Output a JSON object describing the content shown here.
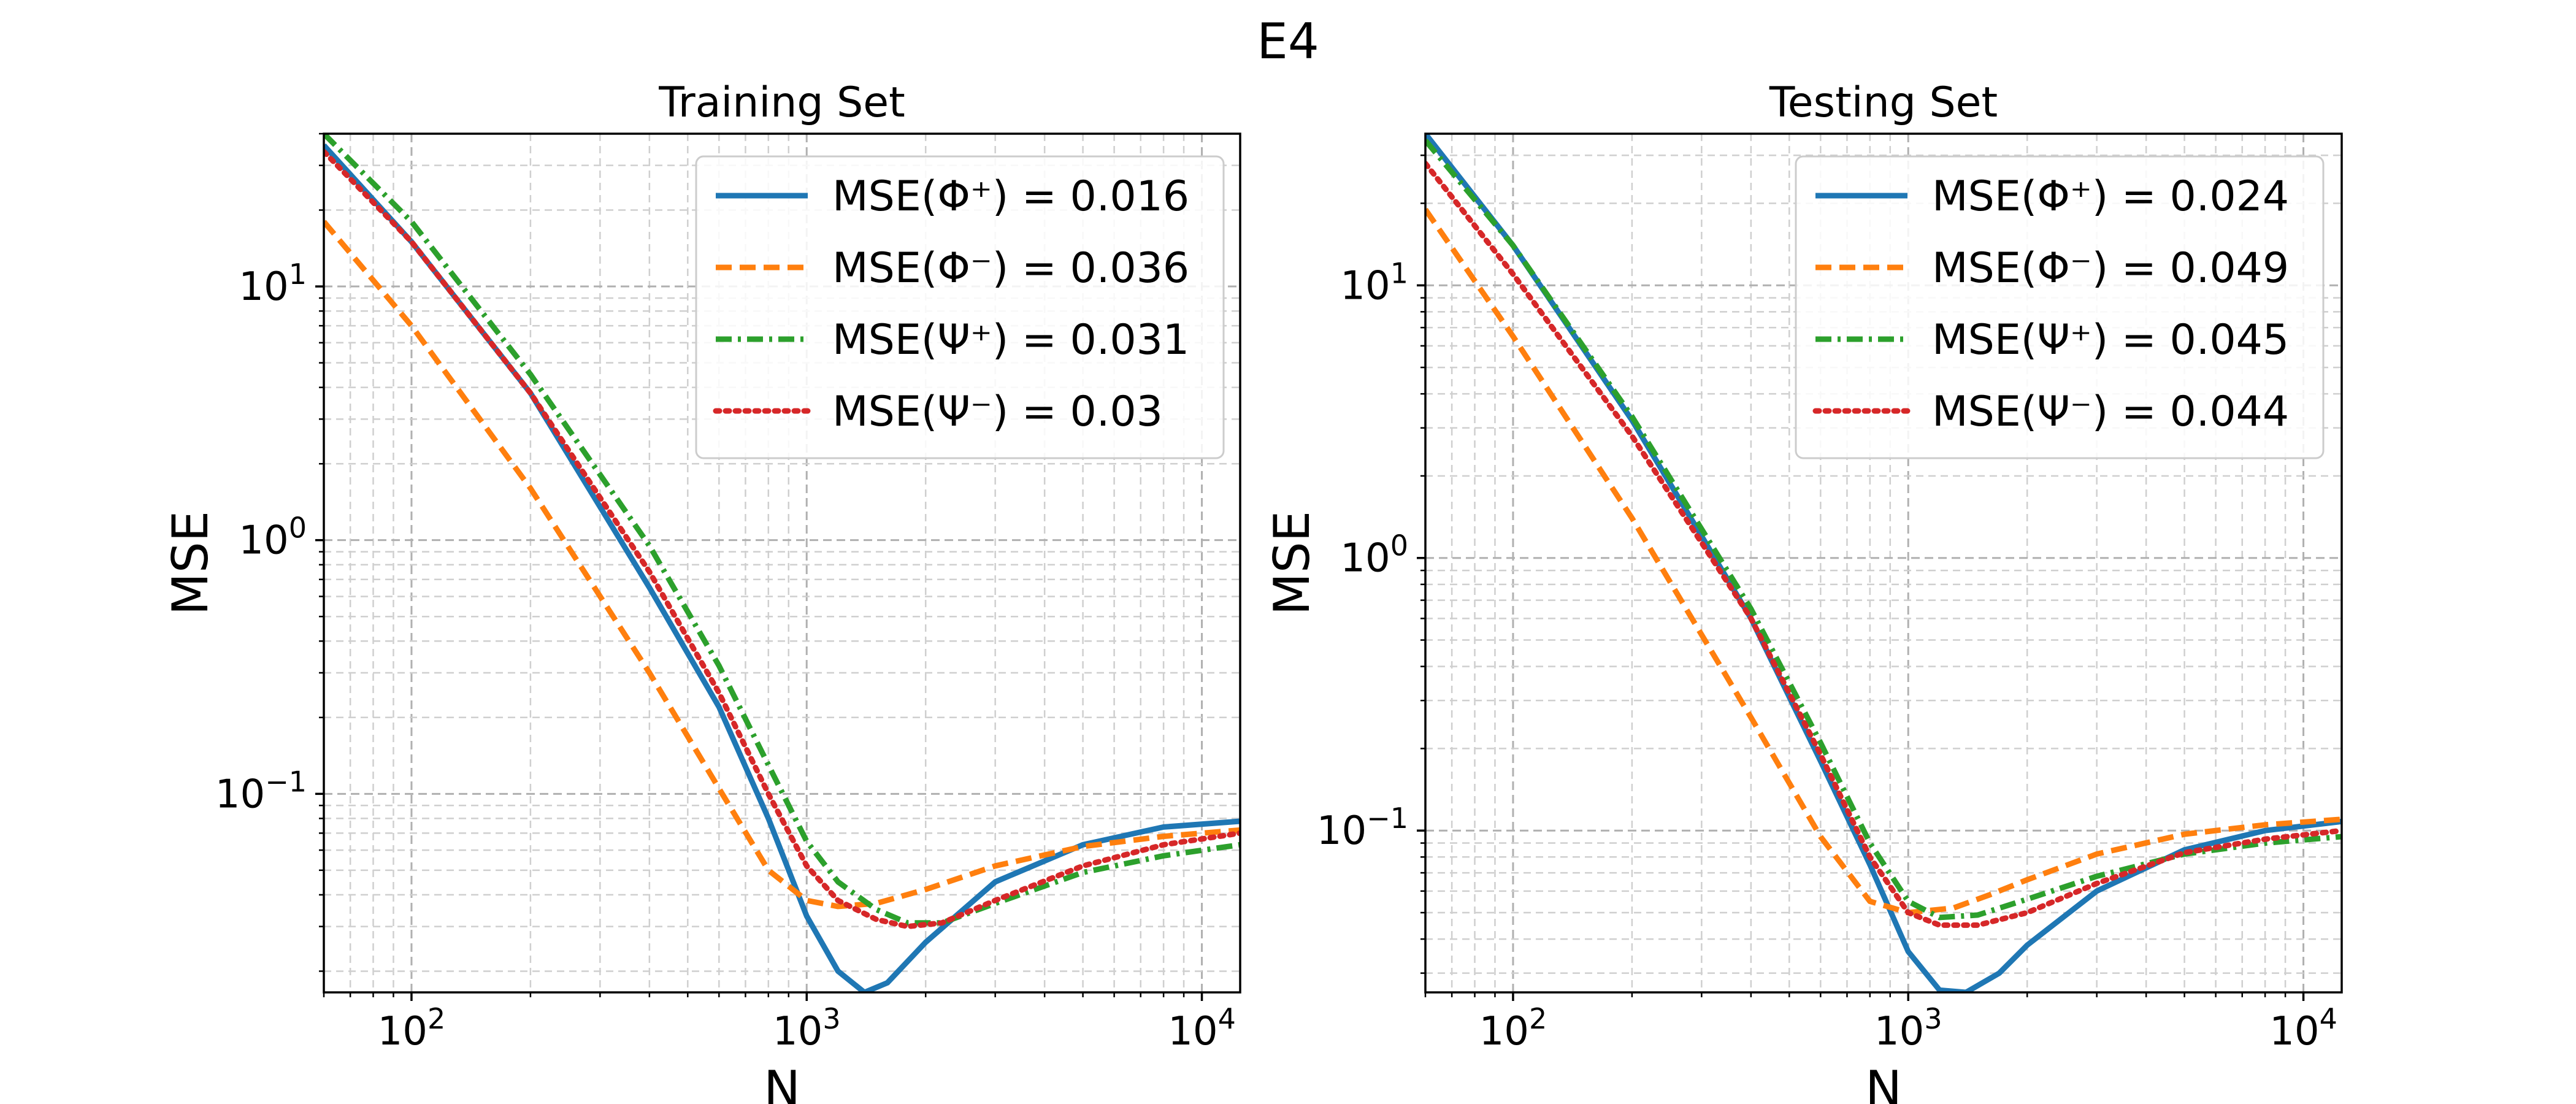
{
  "figure": {
    "title": "E4"
  },
  "chart_data": [
    {
      "type": "line",
      "title": "Training Set",
      "xlabel": "N",
      "ylabel": "MSE",
      "xscale": "log",
      "yscale": "log",
      "xlim": [
        60,
        12500
      ],
      "ylim": [
        0.0165,
        40
      ],
      "xticks": [
        {
          "base": "10",
          "exp": "2",
          "value": 100
        },
        {
          "base": "10",
          "exp": "3",
          "value": 1000
        },
        {
          "base": "10",
          "exp": "4",
          "value": 10000
        }
      ],
      "yticks": [
        {
          "base": "10",
          "exp": "−1",
          "value": 0.1
        },
        {
          "base": "10",
          "exp": "0",
          "value": 1
        },
        {
          "base": "10",
          "exp": "1",
          "value": 10
        }
      ],
      "grid": "major and minor, dashed",
      "legend_position": "top-right",
      "series": [
        {
          "name": "MSE(Φ⁺) = 0.016",
          "color": "#1f77b4",
          "dash": "solid",
          "x": [
            60,
            100,
            200,
            400,
            600,
            800,
            1000,
            1200,
            1400,
            1600,
            2000,
            3000,
            5000,
            8000,
            12500
          ],
          "y": [
            36,
            15,
            3.8,
            0.65,
            0.22,
            0.08,
            0.033,
            0.02,
            0.0165,
            0.018,
            0.026,
            0.045,
            0.063,
            0.074,
            0.078
          ]
        },
        {
          "name": "MSE(Φ⁻) = 0.036",
          "color": "#ff7f0e",
          "dash": "dashed",
          "x": [
            60,
            100,
            200,
            400,
            600,
            800,
            1000,
            1200,
            1500,
            2000,
            3000,
            5000,
            8000,
            12500
          ],
          "y": [
            18,
            7,
            1.6,
            0.3,
            0.105,
            0.05,
            0.038,
            0.036,
            0.037,
            0.042,
            0.052,
            0.062,
            0.068,
            0.072
          ]
        },
        {
          "name": "MSE(Ψ⁺) = 0.031",
          "color": "#2ca02c",
          "dash": "dashdot",
          "x": [
            60,
            100,
            200,
            400,
            600,
            800,
            1000,
            1200,
            1500,
            1800,
            2200,
            3000,
            5000,
            8000,
            12500
          ],
          "y": [
            40,
            18,
            4.5,
            0.95,
            0.32,
            0.13,
            0.065,
            0.045,
            0.035,
            0.031,
            0.031,
            0.037,
            0.049,
            0.057,
            0.063
          ]
        },
        {
          "name": "MSE(Ψ⁻) = 0.03",
          "color": "#d62728",
          "dash": "dotted",
          "x": [
            60,
            100,
            200,
            400,
            600,
            800,
            1000,
            1200,
            1500,
            1800,
            2200,
            3000,
            5000,
            8000,
            12500
          ],
          "y": [
            34,
            15,
            3.8,
            0.75,
            0.25,
            0.1,
            0.052,
            0.038,
            0.032,
            0.03,
            0.031,
            0.038,
            0.052,
            0.063,
            0.07
          ]
        }
      ]
    },
    {
      "type": "line",
      "title": "Testing Set",
      "xlabel": "N",
      "ylabel": "MSE",
      "xscale": "log",
      "yscale": "log",
      "xlim": [
        60,
        12500
      ],
      "ylim": [
        0.0255,
        36
      ],
      "xticks": [
        {
          "base": "10",
          "exp": "2",
          "value": 100
        },
        {
          "base": "10",
          "exp": "3",
          "value": 1000
        },
        {
          "base": "10",
          "exp": "4",
          "value": 10000
        }
      ],
      "yticks": [
        {
          "base": "10",
          "exp": "−1",
          "value": 0.1
        },
        {
          "base": "10",
          "exp": "0",
          "value": 1
        },
        {
          "base": "10",
          "exp": "1",
          "value": 10
        }
      ],
      "grid": "major and minor, dashed",
      "legend_position": "top-right",
      "series": [
        {
          "name": "MSE(Φ⁺) = 0.024",
          "color": "#1f77b4",
          "dash": "solid",
          "x": [
            60,
            100,
            200,
            400,
            600,
            800,
            1000,
            1200,
            1400,
            1700,
            2000,
            3000,
            5000,
            8000,
            12500
          ],
          "y": [
            36,
            14,
            3.2,
            0.6,
            0.18,
            0.075,
            0.036,
            0.026,
            0.0255,
            0.03,
            0.038,
            0.06,
            0.085,
            0.1,
            0.108
          ]
        },
        {
          "name": "MSE(Φ⁻) = 0.049",
          "color": "#ff7f0e",
          "dash": "dashed",
          "x": [
            60,
            100,
            200,
            400,
            600,
            800,
            1000,
            1300,
            1600,
            2000,
            3000,
            5000,
            8000,
            12500
          ],
          "y": [
            19,
            6.5,
            1.4,
            0.26,
            0.095,
            0.055,
            0.05,
            0.052,
            0.058,
            0.066,
            0.082,
            0.097,
            0.105,
            0.11
          ]
        },
        {
          "name": "MSE(Ψ⁺) = 0.045",
          "color": "#2ca02c",
          "dash": "dashdot",
          "x": [
            60,
            100,
            200,
            400,
            600,
            800,
            1000,
            1200,
            1500,
            2000,
            3000,
            5000,
            8000,
            12500
          ],
          "y": [
            34,
            14,
            3.3,
            0.65,
            0.21,
            0.09,
            0.055,
            0.048,
            0.049,
            0.056,
            0.068,
            0.082,
            0.09,
            0.095
          ]
        },
        {
          "name": "MSE(Ψ⁻) = 0.044",
          "color": "#d62728",
          "dash": "dotted",
          "x": [
            60,
            100,
            200,
            400,
            600,
            800,
            1000,
            1200,
            1500,
            2000,
            3000,
            5000,
            8000,
            12500
          ],
          "y": [
            28,
            11,
            2.8,
            0.6,
            0.19,
            0.08,
            0.05,
            0.045,
            0.045,
            0.05,
            0.064,
            0.083,
            0.093,
            0.1
          ]
        }
      ]
    }
  ]
}
